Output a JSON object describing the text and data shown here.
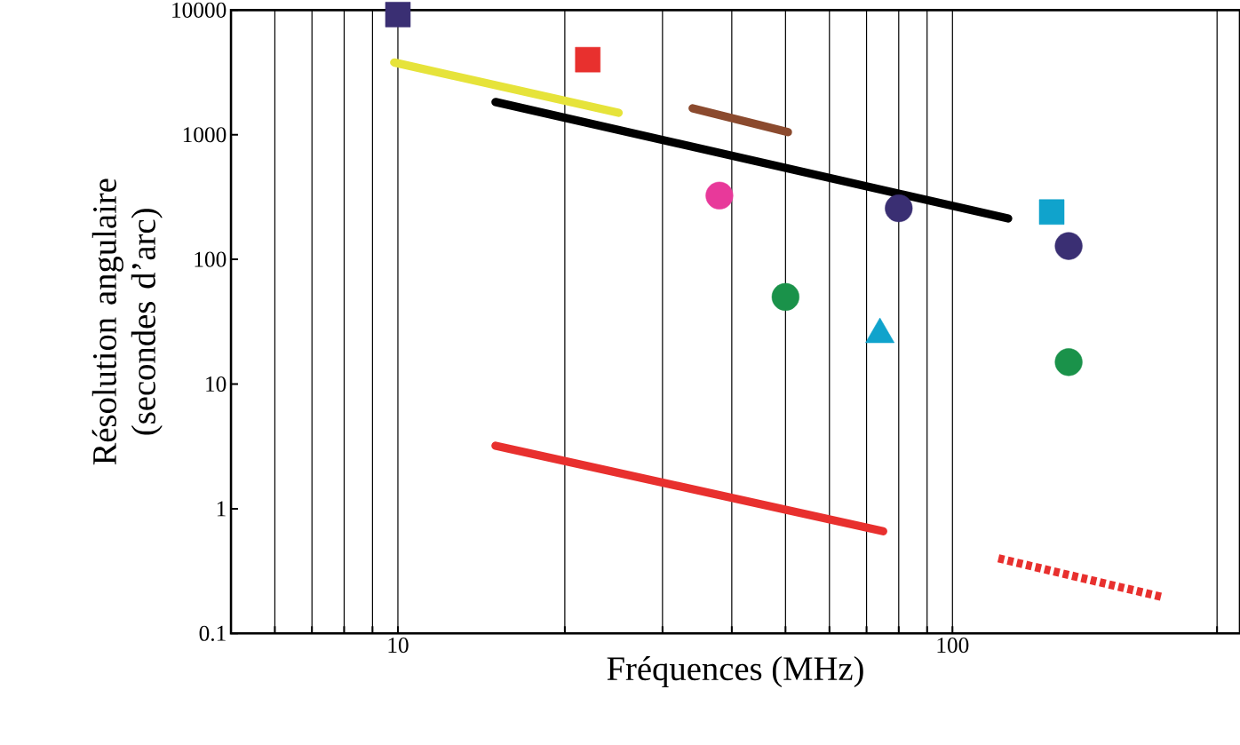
{
  "chart_data": {
    "type": "scatter",
    "xlabel": "Fréquences  (MHz)",
    "ylabel": "Résolution angulaire (secondes d’arc)",
    "log": "xy",
    "grid": "x",
    "xlim": [
      5,
      330
    ],
    "ylim": [
      0.1,
      10000
    ],
    "xticks": [
      {
        "value": 6,
        "label": null
      },
      {
        "value": 7,
        "label": null
      },
      {
        "value": 8,
        "label": null
      },
      {
        "value": 9,
        "label": null
      },
      10,
      {
        "value": 20,
        "label": null
      },
      {
        "value": 30,
        "label": null
      },
      {
        "value": 40,
        "label": null
      },
      {
        "value": 50,
        "label": null
      },
      {
        "value": 60,
        "label": null
      },
      {
        "value": 70,
        "label": null
      },
      {
        "value": 80,
        "label": null
      },
      {
        "value": 90,
        "label": null
      },
      100,
      {
        "value": 300,
        "label": null
      }
    ],
    "yticks": [
      0.1,
      1,
      10,
      100,
      1000,
      10000
    ],
    "series": [
      {
        "marker": "square",
        "color": "#3a2f73",
        "x": [
          10
        ],
        "values": [
          9200
        ]
      },
      {
        "marker": "square",
        "color": "#e8302e",
        "x": [
          22
        ],
        "values": [
          4000
        ]
      },
      {
        "type": "line",
        "marker": "none",
        "line_style": "solid",
        "color": "#e6e33a",
        "x": [
          9.85,
          25
        ],
        "values": [
          3800,
          1500
        ]
      },
      {
        "type": "line",
        "marker": "none",
        "line_style": "solid",
        "color": "#000000",
        "x": [
          15,
          126
        ],
        "values": [
          1830,
          213
        ]
      },
      {
        "type": "line",
        "marker": "none",
        "line_style": "solid",
        "color": "#8b4a2e",
        "x": [
          34,
          50.5
        ],
        "values": [
          1630,
          1050
        ]
      },
      {
        "marker": "circle",
        "color": "#e8399a",
        "x": [
          38
        ],
        "values": [
          325
        ]
      },
      {
        "marker": "circle",
        "color": "#3a2f73",
        "x": [
          80,
          162
        ],
        "values": [
          257,
          128
        ]
      },
      {
        "marker": "square",
        "color": "#10a3cc",
        "x": [
          151
        ],
        "values": [
          240
        ]
      },
      {
        "marker": "circle",
        "color": "#1a924a",
        "x": [
          50,
          162
        ],
        "values": [
          50,
          15
        ]
      },
      {
        "marker": "triangle",
        "color": "#10a3cc",
        "x": [
          74
        ],
        "values": [
          25
        ]
      },
      {
        "type": "line",
        "marker": "none",
        "line_style": "solid",
        "color": "#e8302e",
        "x": [
          15,
          75
        ],
        "values": [
          3.2,
          0.66
        ]
      },
      {
        "type": "line",
        "marker": "none",
        "line_style": "dotted",
        "color": "#e8302e",
        "x": [
          121,
          241
        ],
        "values": [
          0.4,
          0.194
        ]
      }
    ]
  }
}
